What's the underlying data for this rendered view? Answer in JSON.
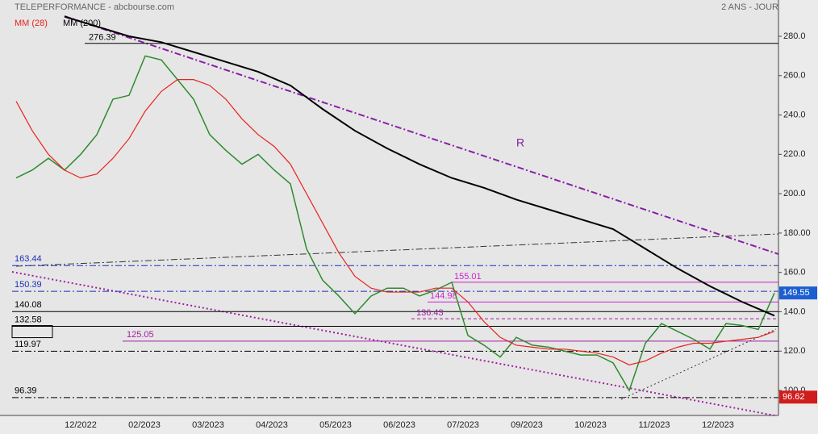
{
  "chart_data": {
    "type": "line",
    "title": "TELEPERFORMANCE - abcbourse.com",
    "subtitle": "2 ANS - JOUR",
    "annotation": "R",
    "ylim": [
      87.3,
      298.45
    ],
    "yticks": [
      {
        "value": 100,
        "label": "100.0"
      },
      {
        "value": 120,
        "label": "120.0"
      },
      {
        "value": 140,
        "label": "140.0"
      },
      {
        "value": 160,
        "label": "160.0"
      },
      {
        "value": 180,
        "label": "180.00"
      },
      {
        "value": 200,
        "label": "200.0"
      },
      {
        "value": 220,
        "label": "220.0"
      },
      {
        "value": 240,
        "label": "240.0"
      },
      {
        "value": 260,
        "label": "260.0"
      },
      {
        "value": 280,
        "label": "280.0"
      }
    ],
    "x_labels": [
      "12/2022",
      "02/2023",
      "03/2023",
      "04/2023",
      "05/2023",
      "06/2023",
      "07/2023",
      "09/2023",
      "10/2023",
      "11/2023",
      "12/2023"
    ],
    "series": [
      {
        "color": "#2e8b2e",
        "values": [
          208,
          212,
          218,
          212,
          220,
          230,
          248,
          250,
          270,
          268,
          258,
          248,
          230,
          222,
          215,
          220,
          212,
          205,
          172,
          156,
          148,
          139,
          148,
          152,
          152,
          148,
          151,
          155,
          128,
          123,
          117,
          127,
          123,
          122,
          120,
          118,
          118,
          114,
          100,
          124,
          134,
          130,
          126,
          121,
          134,
          133,
          131,
          149.55
        ]
      },
      {
        "name": "MM (28)",
        "color": "#e8231e",
        "values": [
          247,
          232,
          220,
          212,
          208,
          210,
          218,
          228,
          242,
          252,
          258,
          258,
          255,
          248,
          238,
          230,
          224,
          215,
          200,
          185,
          170,
          158,
          152,
          150,
          150,
          150,
          152,
          152,
          145,
          135,
          127,
          123,
          122,
          121,
          121,
          120,
          119,
          117,
          113,
          115,
          119,
          122,
          124,
          124,
          125,
          126,
          127,
          130
        ]
      },
      {
        "name": "MM (200)",
        "color": "#000000",
        "values": [
          290,
          285,
          280,
          277,
          272,
          267,
          262,
          255,
          243,
          232,
          223,
          215,
          208,
          203,
          197,
          192,
          187,
          182,
          172,
          162,
          153,
          145,
          138
        ]
      }
    ],
    "levels": [
      {
        "value": 276.39,
        "color": "#000000"
      },
      {
        "value": 163.44,
        "color": "#1c2fb8"
      },
      {
        "value": 150.39,
        "color": "#1c2fb8"
      },
      {
        "value": 140.08,
        "color": "#000000"
      },
      {
        "value": 132.58,
        "color": "#000000"
      },
      {
        "value": 119.97,
        "color": "#000000"
      },
      {
        "value": 96.39,
        "color": "#000000"
      },
      {
        "value": 125.05,
        "color": "#a020a0"
      },
      {
        "value": 155.01,
        "color": "#cc22cc"
      },
      {
        "value": 144.98,
        "color": "#cc22cc"
      },
      {
        "value": 136.43,
        "color": "#a020a0"
      }
    ],
    "price_tags": [
      {
        "value": 149.55,
        "color": "#1c5fd0"
      },
      {
        "value": 96.62,
        "color": "#d01c1c"
      }
    ]
  }
}
